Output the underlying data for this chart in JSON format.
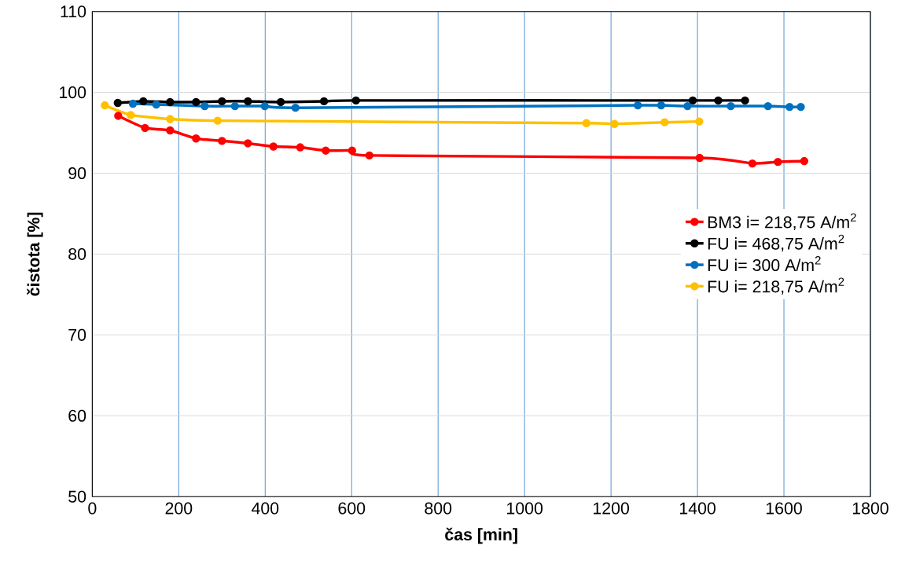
{
  "chart_data": {
    "type": "line",
    "xlabel": "čas [min]",
    "ylabel": "čistota [%]",
    "xlim": [
      0,
      1800
    ],
    "xticks": [
      0,
      200,
      400,
      600,
      800,
      1000,
      1200,
      1400,
      1600,
      1800
    ],
    "ylim": [
      50,
      110
    ],
    "yticks": [
      50,
      60,
      70,
      80,
      90,
      100,
      110
    ],
    "grid": true,
    "legend": "right",
    "marker": "circle",
    "line_style": "solid",
    "series": [
      {
        "name": "BM3 i= 218,75 A/m$^{2}$",
        "color": "#ff0000",
        "x": [
          60,
          122,
          180,
          240,
          300,
          360,
          419,
          481,
          540,
          601,
          641,
          1405,
          1527,
          1586,
          1647
        ],
        "values": [
          97.1,
          95.6,
          95.3,
          94.3,
          94.0,
          93.7,
          93.3,
          93.2,
          92.8,
          92.8,
          92.2,
          91.9,
          91.2,
          91.4,
          91.5
        ]
      },
      {
        "name": "FU i= 468,75 A/m$^{2}$",
        "color": "#000000",
        "x": [
          59,
          118,
          180,
          240,
          300,
          360,
          436,
          536,
          610,
          1389,
          1448,
          1510
        ],
        "values": [
          98.7,
          98.9,
          98.8,
          98.8,
          98.9,
          98.9,
          98.8,
          98.9,
          99.0,
          99.0,
          99.0,
          99.0
        ]
      },
      {
        "name": "FU i= 300 A/m$^{2}$",
        "color": "#0070c0",
        "x": [
          94,
          148,
          260,
          330,
          399,
          470,
          1262,
          1316,
          1377,
          1477,
          1563,
          1613,
          1639
        ],
        "values": [
          98.6,
          98.5,
          98.3,
          98.3,
          98.3,
          98.1,
          98.4,
          98.4,
          98.3,
          98.3,
          98.3,
          98.2,
          98.2
        ]
      },
      {
        "name": "FU i= 218,75 A/m$^{2}$",
        "color": "#ffc000",
        "x": [
          29,
          89,
          180,
          290,
          1143,
          1208,
          1324,
          1404
        ],
        "values": [
          98.4,
          97.2,
          96.7,
          96.5,
          96.2,
          96.1,
          96.3,
          96.4
        ]
      }
    ]
  }
}
